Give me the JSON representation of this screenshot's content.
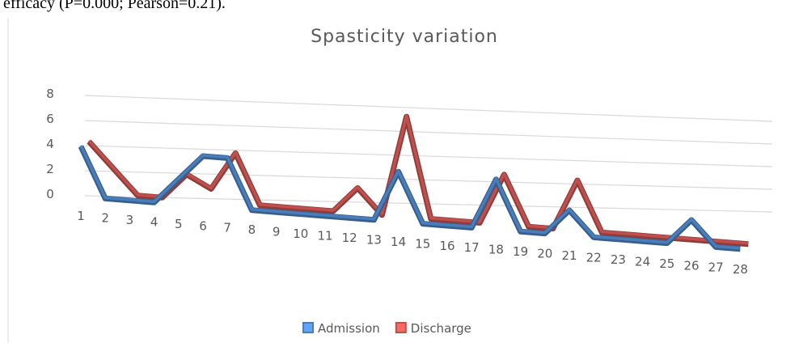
{
  "caption_fragment": "efficacy (P=0.000; Pearson=0.21).",
  "chart_data": {
    "type": "line3d",
    "title": "Spasticity variation",
    "categories": [
      "1",
      "2",
      "3",
      "4",
      "5",
      "6",
      "7",
      "8",
      "9",
      "10",
      "11",
      "12",
      "13",
      "14",
      "15",
      "16",
      "17",
      "18",
      "19",
      "20",
      "21",
      "22",
      "23",
      "24",
      "25",
      "26",
      "27",
      "28"
    ],
    "series": [
      {
        "name": "Admission",
        "color": "#4a7ebb",
        "values": [
          4,
          0,
          0,
          0,
          2,
          4,
          4,
          0,
          0,
          0,
          0,
          0,
          0,
          4,
          0,
          0,
          0,
          4,
          0,
          0,
          2,
          0,
          0,
          0,
          0,
          2,
          0,
          0
        ]
      },
      {
        "name": "Discharge",
        "color": "#c0504d",
        "values": [
          4,
          2,
          0,
          0,
          2,
          1,
          4,
          0,
          0,
          0,
          0,
          2,
          0,
          8,
          0,
          0,
          0,
          4,
          0,
          0,
          4,
          0,
          0,
          0,
          0,
          0,
          0,
          0
        ]
      }
    ],
    "ylim": [
      0,
      8
    ],
    "yticks": [
      0,
      2,
      4,
      6,
      8
    ],
    "grid": true,
    "legend": "bottom"
  }
}
